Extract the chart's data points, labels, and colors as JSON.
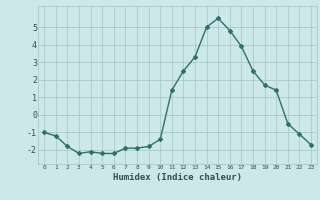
{
  "x": [
    0,
    1,
    2,
    3,
    4,
    5,
    6,
    7,
    8,
    9,
    10,
    11,
    12,
    13,
    14,
    15,
    16,
    17,
    18,
    19,
    20,
    21,
    22,
    23
  ],
  "y": [
    -1.0,
    -1.2,
    -1.8,
    -2.2,
    -2.1,
    -2.2,
    -2.2,
    -1.9,
    -1.9,
    -1.8,
    -1.4,
    1.4,
    2.5,
    3.3,
    5.0,
    5.5,
    4.8,
    3.9,
    2.5,
    1.7,
    1.4,
    -0.5,
    -1.1,
    -1.7
  ],
  "xlabel": "Humidex (Indice chaleur)",
  "ylabel": "",
  "xlim": [
    -0.5,
    23.5
  ],
  "ylim": [
    -2.8,
    6.2
  ],
  "yticks": [
    -2,
    -1,
    0,
    1,
    2,
    3,
    4,
    5
  ],
  "xticks": [
    0,
    1,
    2,
    3,
    4,
    5,
    6,
    7,
    8,
    9,
    10,
    11,
    12,
    13,
    14,
    15,
    16,
    17,
    18,
    19,
    20,
    21,
    22,
    23
  ],
  "line_color": "#2d7070",
  "marker": "D",
  "marker_size": 2,
  "bg_color": "#cce8e8",
  "grid_color": "#aacaca",
  "tick_label_color": "#2d5050",
  "xlabel_color": "#2d5050",
  "line_width": 1.0
}
